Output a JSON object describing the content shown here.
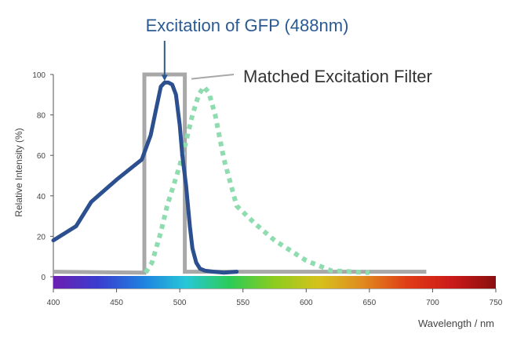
{
  "chart_data": {
    "type": "line",
    "title": "Excitation of GFP (488nm)",
    "xlabel": "Wavelength / nm",
    "ylabel": "Relative Intensity (%)",
    "xlim": [
      400,
      750
    ],
    "ylim": [
      0,
      100
    ],
    "x_ticks": [
      400,
      450,
      500,
      550,
      600,
      650,
      700,
      750
    ],
    "y_ticks": [
      0,
      20,
      40,
      60,
      80,
      100
    ],
    "grid": false,
    "annotations": [
      {
        "text": "Excitation of GFP (488nm)",
        "x": 488,
        "y": 96
      },
      {
        "text": "Matched Excitation Filter",
        "x": 508,
        "y": 99
      }
    ],
    "series": [
      {
        "style": "solid",
        "color": "#2b4f8f",
        "x": [
          400,
          418,
          430,
          450,
          470,
          477,
          481,
          485,
          488,
          491,
          494,
          497,
          500,
          502,
          505,
          508,
          510,
          513,
          516,
          520,
          527,
          535,
          545
        ],
        "y": [
          18,
          25,
          37,
          48,
          58,
          70,
          82,
          94,
          96,
          96,
          95,
          90,
          75,
          60,
          45,
          25,
          14,
          7,
          4,
          3,
          2.5,
          2,
          2.5
        ]
      },
      {
        "style": "dotted",
        "color": "#8fdcb0",
        "x": [
          473,
          478,
          485,
          490,
          495,
          500,
          505,
          510,
          515,
          519,
          523,
          528,
          535,
          545,
          560,
          575,
          600,
          620,
          650
        ],
        "y": [
          2,
          7,
          22,
          35,
          45,
          55,
          67,
          80,
          90,
          94,
          91,
          80,
          58,
          35,
          26,
          18,
          8,
          3,
          2
        ]
      },
      {
        "style": "filter",
        "color": "#a8a8a8",
        "x": [
          400,
          472,
          472,
          504,
          504,
          695
        ],
        "y": [
          2.5,
          2,
          100,
          100,
          2.5,
          2.5
        ]
      }
    ],
    "colors": {
      "axis": "#555555",
      "tick_text": "#444444",
      "title": "#2b5a92",
      "filter_label": "#333333"
    },
    "spectrum_gradient": [
      "#6b1fb1",
      "#3a3ccf",
      "#1f7fe0",
      "#27c7d8",
      "#2ccc55",
      "#8ccc1f",
      "#d6c21c",
      "#e08a1f",
      "#df3c16",
      "#cc1a1a",
      "#8a0f0f"
    ]
  }
}
